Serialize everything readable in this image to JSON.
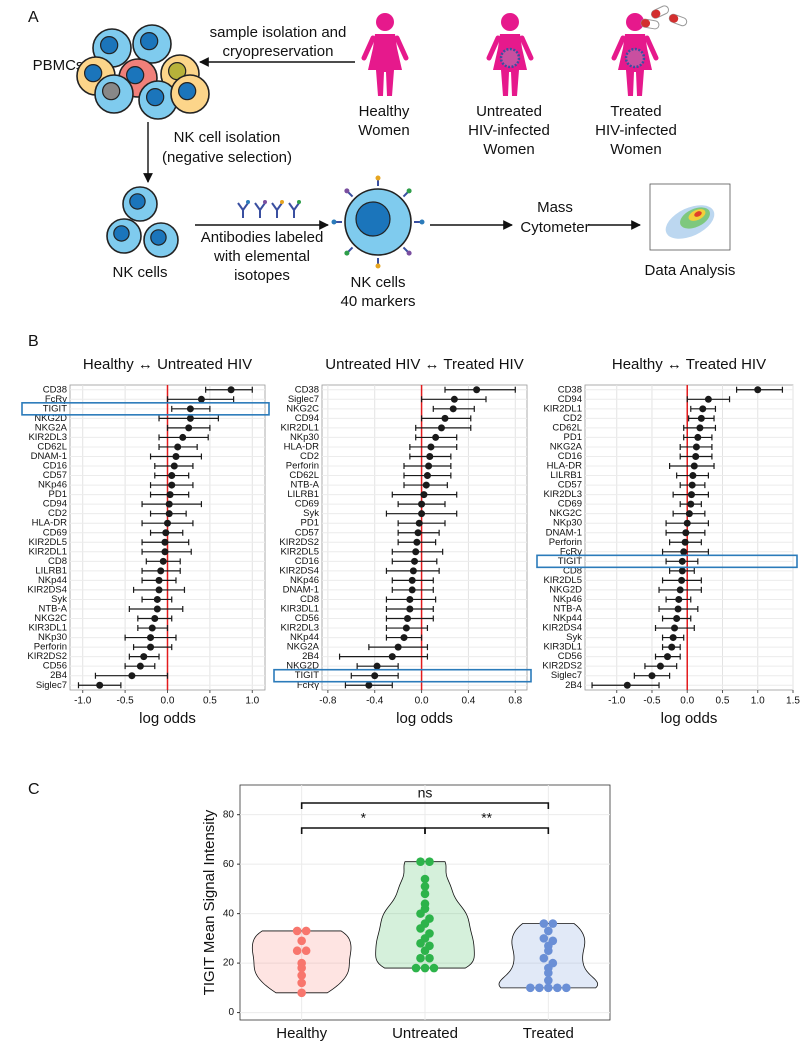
{
  "panel_labels": [
    "A",
    "B",
    "C"
  ],
  "diagram": {
    "pbmcs": "PBMCs",
    "sample_step": [
      "sample isolation and",
      "cryopreservation"
    ],
    "groups": [
      [
        "Healthy",
        "Women"
      ],
      [
        "Untreated",
        "HIV-infected",
        "Women"
      ],
      [
        "Treated",
        "HIV-infected",
        "Women"
      ]
    ],
    "isolation_step": [
      "NK cell isolation",
      "(negative selection)"
    ],
    "nk_cells": "NK cells",
    "antibody_step": [
      "Antibodies labeled",
      "with elemental",
      "isotopes"
    ],
    "nk_markers": [
      "NK cells",
      "40 markers"
    ],
    "cytometer": [
      "Mass",
      "Cytometer"
    ],
    "analysis": "Data Analysis"
  },
  "chart_data": [
    {
      "type": "forest",
      "title": "Healthy ↔ Untreated HIV",
      "xlabel": "log odds",
      "categories": [
        "CD38",
        "FcRγ",
        "TIGIT",
        "NKG2D",
        "NKG2A",
        "KIR2DL3",
        "CD62L",
        "DNAM-1",
        "CD16",
        "CD57",
        "NKp46",
        "PD1",
        "CD94",
        "CD2",
        "HLA-DR",
        "CD69",
        "KIR2DL5",
        "KIR2DL1",
        "CD8",
        "LILRB1",
        "NKp44",
        "KIR2DS4",
        "Syk",
        "NTB-A",
        "NKG2C",
        "KIR3DL1",
        "NKp30",
        "Perforin",
        "KIR2DS2",
        "CD56",
        "2B4",
        "Siglec7"
      ],
      "values": [
        0.75,
        0.4,
        0.27,
        0.27,
        0.25,
        0.18,
        0.12,
        0.1,
        0.08,
        0.05,
        0.05,
        0.03,
        0.02,
        0.02,
        0.0,
        -0.02,
        -0.03,
        -0.03,
        -0.05,
        -0.08,
        -0.1,
        -0.1,
        -0.12,
        -0.12,
        -0.15,
        -0.18,
        -0.2,
        -0.2,
        -0.28,
        -0.32,
        -0.42,
        -0.8
      ],
      "lower": [
        0.45,
        0.0,
        0.05,
        -0.1,
        0.0,
        -0.1,
        -0.1,
        -0.2,
        -0.15,
        -0.15,
        -0.2,
        -0.2,
        -0.3,
        -0.2,
        -0.3,
        -0.2,
        -0.3,
        -0.3,
        -0.25,
        -0.3,
        -0.3,
        -0.4,
        -0.3,
        -0.45,
        -0.35,
        -0.35,
        -0.5,
        -0.4,
        -0.45,
        -0.5,
        -0.85,
        -1.05
      ],
      "upper": [
        1.0,
        0.78,
        0.5,
        0.6,
        0.5,
        0.48,
        0.35,
        0.4,
        0.3,
        0.25,
        0.3,
        0.25,
        0.4,
        0.22,
        0.3,
        0.18,
        0.25,
        0.28,
        0.15,
        0.15,
        0.1,
        0.2,
        0.05,
        0.18,
        0.05,
        0.0,
        0.1,
        0.05,
        -0.1,
        -0.15,
        0.0,
        -0.55
      ],
      "xlim": [
        -1.15,
        1.15
      ],
      "xticks": [
        {
          "value": -1.0,
          "label": "-1.0"
        },
        -0.5,
        {
          "value": 0,
          "label": "0.0"
        },
        0.5,
        {
          "value": 1.0,
          "label": "1.0"
        }
      ],
      "grid": true,
      "color": "#1a1a1a",
      "reference_line_color": "#e31a1c",
      "highlight": "TIGIT",
      "highlight_color": "#2b7bba"
    },
    {
      "type": "forest",
      "title": "Untreated HIV ↔ Treated HIV",
      "xlabel": "log odds",
      "categories": [
        "CD38",
        "Siglec7",
        "NKG2C",
        "CD94",
        "KIR2DL1",
        "NKp30",
        "HLA-DR",
        "CD2",
        "Perforin",
        "CD62L",
        "NTB-A",
        "LILRB1",
        "CD69",
        "Syk",
        "PD1",
        "CD57",
        "KIR2DS2",
        "KIR2DL5",
        "CD16",
        "KIR2DS4",
        "NKp46",
        "DNAM-1",
        "CD8",
        "KIR3DL1",
        "CD56",
        "KIR2DL3",
        "NKp44",
        "NKG2A",
        "2B4",
        "NKG2D",
        "TIGIT",
        "FcRγ"
      ],
      "values": [
        0.47,
        0.28,
        0.27,
        0.2,
        0.17,
        0.12,
        0.08,
        0.07,
        0.06,
        0.05,
        0.04,
        0.02,
        0.0,
        0.0,
        -0.02,
        -0.03,
        -0.04,
        -0.05,
        -0.06,
        -0.07,
        -0.08,
        -0.08,
        -0.1,
        -0.1,
        -0.12,
        -0.13,
        -0.15,
        -0.2,
        -0.25,
        -0.38,
        -0.4,
        -0.45
      ],
      "lower": [
        0.2,
        0.0,
        0.1,
        0.0,
        -0.05,
        -0.05,
        -0.1,
        -0.1,
        -0.15,
        -0.15,
        -0.15,
        -0.25,
        -0.2,
        -0.3,
        -0.2,
        -0.2,
        -0.2,
        -0.25,
        -0.25,
        -0.3,
        -0.25,
        -0.25,
        -0.3,
        -0.3,
        -0.3,
        -0.3,
        -0.3,
        -0.45,
        -0.7,
        -0.55,
        -0.6,
        -0.65
      ],
      "upper": [
        0.8,
        0.55,
        0.45,
        0.42,
        0.42,
        0.3,
        0.3,
        0.25,
        0.25,
        0.25,
        0.22,
        0.3,
        0.2,
        0.3,
        0.2,
        0.15,
        0.12,
        0.18,
        0.13,
        0.15,
        0.1,
        0.1,
        0.12,
        0.1,
        0.1,
        0.05,
        0.0,
        0.05,
        0.05,
        -0.2,
        -0.2,
        -0.25
      ],
      "xlim": [
        -0.85,
        0.9
      ],
      "xticks": [
        -0.8,
        -0.4,
        {
          "value": 0,
          "label": "0.0"
        },
        0.4,
        0.8
      ],
      "grid": true,
      "color": "#1a1a1a",
      "reference_line_color": "#e31a1c",
      "highlight": "TIGIT",
      "highlight_color": "#2b7bba"
    },
    {
      "type": "forest",
      "title": "Healthy ↔ Treated HIV",
      "xlabel": "log odds",
      "categories": [
        "CD38",
        "CD94",
        "KIR2DL1",
        "CD2",
        "CD62L",
        "PD1",
        "NKG2A",
        "CD16",
        "HLA-DR",
        "LILRB1",
        "CD57",
        "KIR2DL3",
        "CD69",
        "NKG2C",
        "NKp30",
        "DNAM-1",
        "Perforin",
        "FcRγ",
        "TIGIT",
        "CD8",
        "KIR2DL5",
        "NKG2D",
        "NKp46",
        "NTB-A",
        "NKp44",
        "KIR2DS4",
        "Syk",
        "KIR3DL1",
        "CD56",
        "KIR2DS2",
        "Siglec7",
        "2B4"
      ],
      "values": [
        1.0,
        0.3,
        0.22,
        0.2,
        0.18,
        0.15,
        0.13,
        0.12,
        0.1,
        0.08,
        0.07,
        0.06,
        0.05,
        0.03,
        0.0,
        -0.02,
        -0.03,
        -0.05,
        -0.07,
        -0.07,
        -0.08,
        -0.1,
        -0.12,
        -0.13,
        -0.15,
        -0.18,
        -0.2,
        -0.22,
        -0.28,
        -0.38,
        -0.5,
        -0.85
      ],
      "lower": [
        0.7,
        0.0,
        0.05,
        0.02,
        -0.05,
        -0.05,
        -0.1,
        -0.1,
        -0.25,
        -0.15,
        -0.1,
        -0.2,
        -0.1,
        -0.2,
        -0.3,
        -0.3,
        -0.25,
        -0.35,
        -0.3,
        -0.25,
        -0.35,
        -0.4,
        -0.3,
        -0.4,
        -0.35,
        -0.45,
        -0.35,
        -0.35,
        -0.45,
        -0.6,
        -0.75,
        -1.35
      ],
      "upper": [
        1.35,
        0.6,
        0.4,
        0.38,
        0.4,
        0.35,
        0.35,
        0.35,
        0.38,
        0.3,
        0.25,
        0.3,
        0.2,
        0.25,
        0.3,
        0.25,
        0.2,
        0.3,
        0.15,
        0.1,
        0.2,
        0.2,
        0.05,
        0.15,
        0.05,
        0.1,
        -0.05,
        -0.1,
        -0.1,
        -0.15,
        -0.25,
        -0.4
      ],
      "xlim": [
        -1.45,
        1.5
      ],
      "xticks": [
        {
          "value": -1.0,
          "label": "-1.0"
        },
        -0.5,
        {
          "value": 0,
          "label": "0.0"
        },
        0.5,
        {
          "value": 1.0,
          "label": "1.0"
        },
        1.5
      ],
      "grid": true,
      "color": "#1a1a1a",
      "reference_line_color": "#e31a1c",
      "highlight": "TIGIT",
      "highlight_color": "#2b7bba"
    },
    {
      "type": "violin",
      "ylabel": "TIGIT Mean Signal Intensity",
      "categories": [
        "Healthy",
        "Untreated",
        "Treated"
      ],
      "colors": [
        "#f8766d",
        "#2db34a",
        "#6a8fd6"
      ],
      "values": [
        [
          33,
          33,
          29,
          25,
          25,
          20,
          18,
          15,
          12,
          8
        ],
        [
          61,
          61,
          54,
          51,
          48,
          44,
          42,
          40,
          38,
          36,
          34,
          32,
          30,
          28,
          27,
          25,
          22,
          22,
          18,
          18,
          18
        ],
        [
          36,
          36,
          33,
          30,
          29,
          27,
          25,
          22,
          20,
          18,
          16,
          13,
          10,
          10,
          10,
          10,
          10
        ]
      ],
      "annotations": [
        "ns",
        "*",
        "**"
      ],
      "ylim": [
        -3,
        92
      ],
      "yticks": [
        0,
        20,
        40,
        60,
        80
      ],
      "grid": true
    }
  ]
}
